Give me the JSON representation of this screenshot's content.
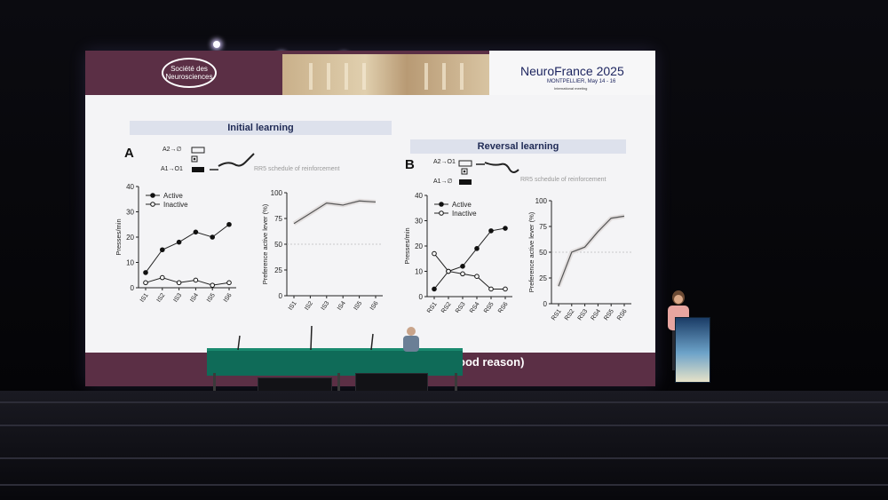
{
  "banner": {
    "logo_text": "Société des Neurosciences",
    "conference_title": "NeuroFrance 2025",
    "conference_subtitle": "MONTPELLIER, May 14 - 16",
    "conference_note": "International meeting"
  },
  "panel_a": {
    "section_title": "Initial learning",
    "letter": "A",
    "schema": {
      "line1": "A2→∅",
      "line2": "A1→O1"
    },
    "schedule_note": "RR5 schedule of reinforcement"
  },
  "panel_b": {
    "section_title": "Reversal learning",
    "letter": "B",
    "schema": {
      "line1": "A2→O1",
      "line2": "A1→∅"
    },
    "schedule_note": "RR5 schedule of reinforcement"
  },
  "footer_text": "ood reason)",
  "colors": {
    "banner": "#5b2f45",
    "section_band": "#dde1ec",
    "table": "#0f6b58"
  },
  "chart_data": [
    {
      "type": "line",
      "categories": [
        "IS1",
        "IS2",
        "IS3",
        "IS4",
        "IS5",
        "IS6"
      ],
      "ylabel": "Presses/min",
      "ylim": [
        0,
        40
      ],
      "yticks": [
        "0",
        "10",
        "20",
        "30",
        "40"
      ],
      "series": [
        {
          "name": "Active",
          "values": [
            6,
            15,
            18,
            22,
            20,
            25
          ]
        },
        {
          "name": "Inactive",
          "values": [
            2,
            4,
            2,
            3,
            1,
            2
          ]
        }
      ]
    },
    {
      "type": "line",
      "categories": [
        "IS1",
        "IS2",
        "IS3",
        "IS4",
        "IS5",
        "IS6"
      ],
      "ylabel": "Preference active lever (%)",
      "ylim": [
        0,
        100
      ],
      "yticks": [
        "0",
        "25",
        "50",
        "75",
        "100"
      ],
      "series": [
        {
          "values": [
            70,
            80,
            90,
            88,
            92,
            91
          ]
        }
      ]
    },
    {
      "type": "line",
      "categories": [
        "RS1",
        "RS2",
        "RS3",
        "RS4",
        "RS5",
        "RS6"
      ],
      "ylabel": "Presses/min",
      "ylim": [
        0,
        40
      ],
      "yticks": [
        "0",
        "10",
        "20",
        "30",
        "40"
      ],
      "series": [
        {
          "name": "Active",
          "values": [
            3,
            10,
            12,
            19,
            26,
            27
          ]
        },
        {
          "name": "Inactive",
          "values": [
            17,
            10,
            9,
            8,
            3,
            3
          ]
        }
      ]
    },
    {
      "type": "line",
      "categories": [
        "RS1",
        "RS2",
        "RS3",
        "RS4",
        "RS5",
        "RS6"
      ],
      "ylabel": "Preference active lever (%)",
      "ylim": [
        0,
        100
      ],
      "yticks": [
        "0",
        "25",
        "50",
        "75",
        "100"
      ],
      "series": [
        {
          "values": [
            17,
            50,
            55,
            70,
            83,
            85
          ]
        }
      ]
    }
  ]
}
